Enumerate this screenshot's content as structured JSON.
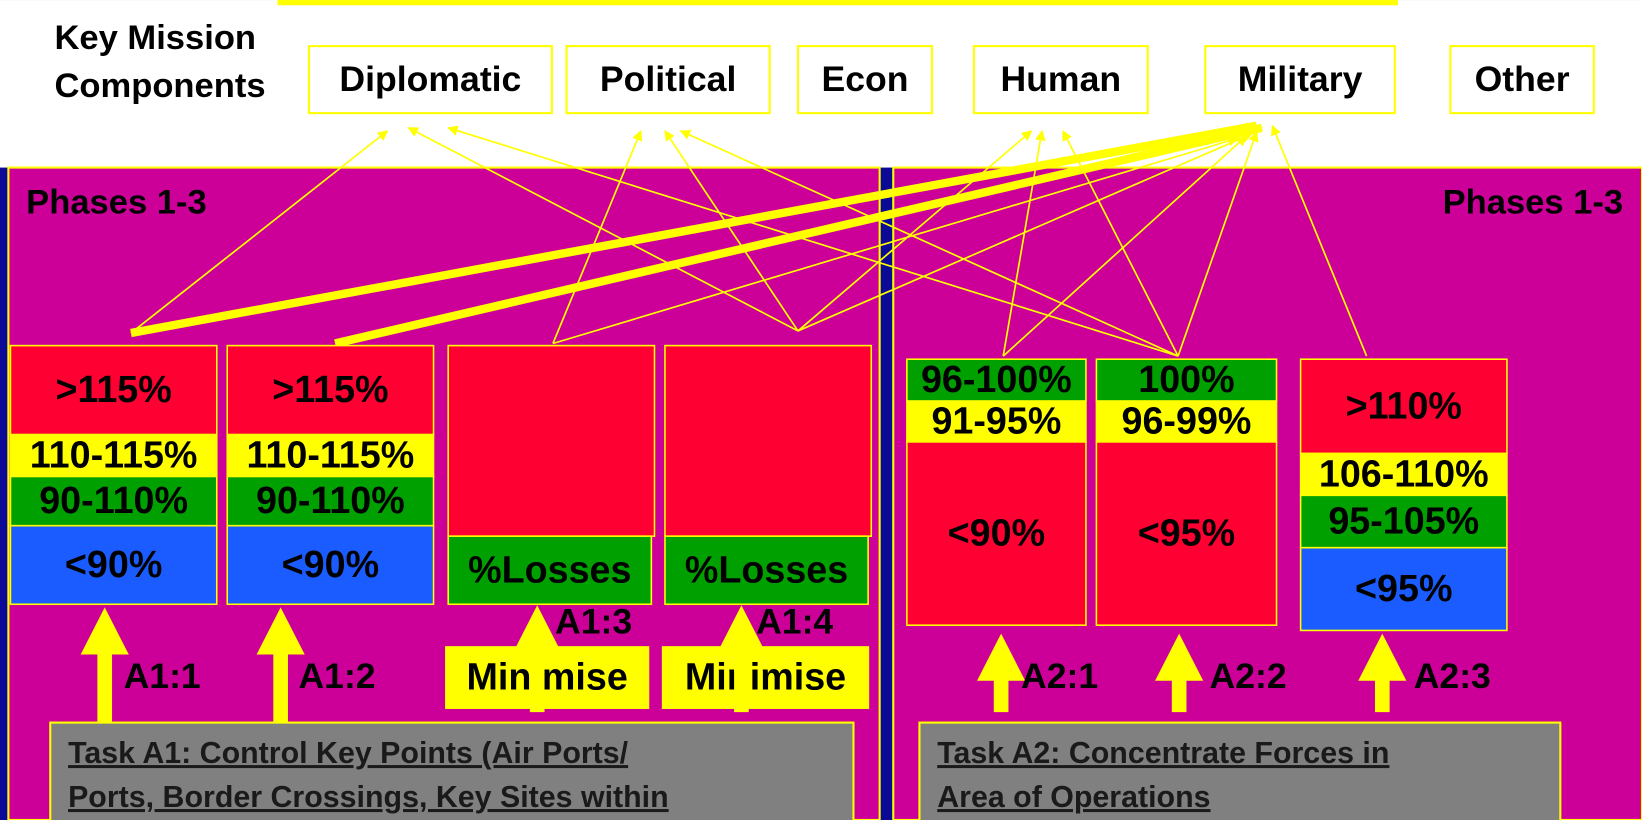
{
  "header": {
    "title_lines": [
      "Key Mission",
      "Components"
    ],
    "components": [
      "Diplomatic",
      "Political",
      "Econ",
      "Human",
      "Military",
      "Other"
    ]
  },
  "phases": {
    "left": "Phases 1-3",
    "right": "Phases 1-3"
  },
  "tasks": [
    {
      "title_lines": [
        "Task A1: Control Key Points (Air Ports/",
        "Ports, Border Crossings, Key Sites within"
      ],
      "measures": [
        {
          "label": "A1:1",
          "bands": [
            ">115%",
            "110-115%",
            "90-110%",
            "<90%"
          ]
        },
        {
          "label": "A1:2",
          "bands": [
            ">115%",
            "110-115%",
            "90-110%",
            "<90%"
          ]
        },
        {
          "label": "A1:3",
          "bands": [
            "%Losses"
          ],
          "note": "Minimise"
        },
        {
          "label": "A1:4",
          "bands": [
            "%Losses"
          ],
          "note": "Minimise"
        }
      ]
    },
    {
      "title_lines": [
        "Task A2: Concentrate Forces in",
        "Area of Operations"
      ],
      "measures": [
        {
          "label": "A2:1",
          "bands": [
            "96-100%",
            "91-95%",
            "<90%"
          ]
        },
        {
          "label": "A2:2",
          "bands": [
            "100%",
            "96-99%",
            "<95%"
          ]
        },
        {
          "label": "A2:3",
          "bands": [
            ">110%",
            "106-110%",
            "95-105%",
            "<95%"
          ]
        }
      ]
    }
  ]
}
